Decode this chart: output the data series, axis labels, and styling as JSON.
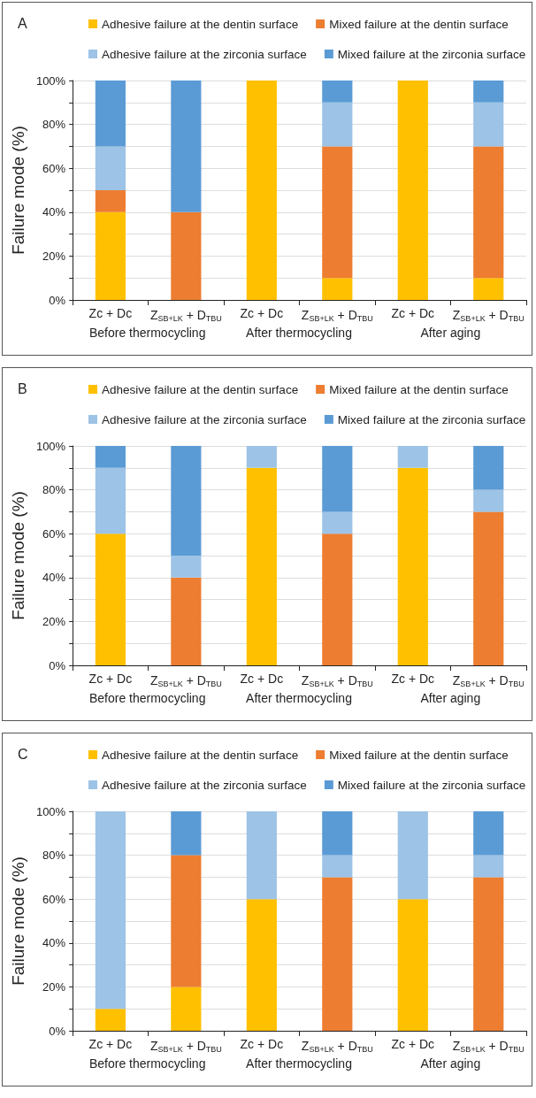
{
  "chart_data": [
    {
      "type": "bar",
      "title": "A",
      "ylabel": "Failure mode (%)",
      "stacked": true,
      "grid": "y",
      "legend": "top",
      "categories": [
        "Zc + Dc",
        "Z$_{SB+LK}$ + D$_{TBU}$",
        "Zc + Dc",
        "Z$_{SB+LK}$ + D$_{TBU}$",
        "Zc + Dc",
        "Z$_{SB+LK}$ + D$_{TBU}$"
      ],
      "annotations": [
        "Before thermocycling",
        "After thermocycling",
        "After aging"
      ],
      "ylim": [
        0,
        100
      ],
      "yticks": [
        {
          "value": 0,
          "label": "0%"
        },
        {
          "value": 10,
          "label": null
        },
        {
          "value": 20,
          "label": "20%"
        },
        {
          "value": 30,
          "label": null
        },
        {
          "value": 40,
          "label": "40%"
        },
        {
          "value": 50,
          "label": null
        },
        {
          "value": 60,
          "label": "60%"
        },
        {
          "value": 70,
          "label": null
        },
        {
          "value": 80,
          "label": "80%"
        },
        {
          "value": 90,
          "label": null
        },
        {
          "value": 100,
          "label": "100%"
        }
      ],
      "series": [
        {
          "name": "Adhesive failure at the dentin surface",
          "color": "#ffc000",
          "values": [
            40,
            0,
            100,
            10,
            100,
            10
          ]
        },
        {
          "name": "Mixed failure at the dentin surface",
          "color": "#ed7d31",
          "values": [
            10,
            40,
            0,
            60,
            0,
            60
          ]
        },
        {
          "name": "Adhesive failure at the zirconia surface",
          "color": "#9dc3e6",
          "values": [
            20,
            0,
            0,
            20,
            0,
            20
          ]
        },
        {
          "name": "Mixed failure at the zirconia surface",
          "color": "#5b9bd5",
          "values": [
            30,
            60,
            0,
            10,
            0,
            10
          ]
        }
      ]
    },
    {
      "type": "bar",
      "title": "B",
      "ylabel": "Failure mode (%)",
      "stacked": true,
      "grid": "y",
      "legend": "top",
      "categories": [
        "Zc + Dc",
        "Z$_{SB+LK}$ + D$_{TBU}$",
        "Zc + Dc",
        "Z$_{SB+LK}$ + D$_{TBU}$",
        "Zc + Dc",
        "Z$_{SB+LK}$ + D$_{TBU}$"
      ],
      "annotations": [
        "Before thermocycling",
        "After thermocycling",
        "After aging"
      ],
      "ylim": [
        0,
        100
      ],
      "yticks": [
        {
          "value": 0,
          "label": "0%"
        },
        {
          "value": 10,
          "label": null
        },
        {
          "value": 20,
          "label": "20%"
        },
        {
          "value": 30,
          "label": null
        },
        {
          "value": 40,
          "label": "40%"
        },
        {
          "value": 50,
          "label": null
        },
        {
          "value": 60,
          "label": "60%"
        },
        {
          "value": 70,
          "label": null
        },
        {
          "value": 80,
          "label": "80%"
        },
        {
          "value": 90,
          "label": null
        },
        {
          "value": 100,
          "label": "100%"
        }
      ],
      "series": [
        {
          "name": "Adhesive failure at the dentin surface",
          "color": "#ffc000",
          "values": [
            60,
            0,
            90,
            0,
            90,
            0
          ]
        },
        {
          "name": "Mixed failure at the dentin surface",
          "color": "#ed7d31",
          "values": [
            0,
            40,
            0,
            60,
            0,
            70
          ]
        },
        {
          "name": "Adhesive failure at the zirconia surface",
          "color": "#9dc3e6",
          "values": [
            30,
            10,
            10,
            10,
            10,
            10
          ]
        },
        {
          "name": "Mixed failure at the zirconia surface",
          "color": "#5b9bd5",
          "values": [
            10,
            50,
            0,
            30,
            0,
            20
          ]
        }
      ]
    },
    {
      "type": "bar",
      "title": "C",
      "ylabel": "Failure mode (%)",
      "stacked": true,
      "grid": "y",
      "legend": "top",
      "categories": [
        "Zc + Dc",
        "Z$_{SB+LK}$ + D$_{TBU}$",
        "Zc + Dc",
        "Z$_{SB+LK}$ + D$_{TBU}$",
        "Zc + Dc",
        "Z$_{SB+LK}$ + D$_{TBU}$"
      ],
      "annotations": [
        "Before thermocycling",
        "After thermocycling",
        "After aging"
      ],
      "ylim": [
        0,
        100
      ],
      "yticks": [
        {
          "value": 0,
          "label": "0%"
        },
        {
          "value": 10,
          "label": null
        },
        {
          "value": 20,
          "label": "20%"
        },
        {
          "value": 30,
          "label": null
        },
        {
          "value": 40,
          "label": "40%"
        },
        {
          "value": 50,
          "label": null
        },
        {
          "value": 60,
          "label": "60%"
        },
        {
          "value": 70,
          "label": null
        },
        {
          "value": 80,
          "label": "80%"
        },
        {
          "value": 90,
          "label": null
        },
        {
          "value": 100,
          "label": "100%"
        }
      ],
      "series": [
        {
          "name": "Adhesive failure at the dentin surface",
          "color": "#ffc000",
          "values": [
            10,
            20,
            60,
            0,
            60,
            0
          ]
        },
        {
          "name": "Mixed failure at the dentin surface",
          "color": "#ed7d31",
          "values": [
            0,
            60,
            0,
            70,
            0,
            70
          ]
        },
        {
          "name": "Adhesive failure at the zirconia surface",
          "color": "#9dc3e6",
          "values": [
            90,
            0,
            40,
            10,
            40,
            10
          ]
        },
        {
          "name": "Mixed failure at the zirconia surface",
          "color": "#5b9bd5",
          "values": [
            0,
            20,
            0,
            20,
            0,
            20
          ]
        }
      ]
    }
  ]
}
